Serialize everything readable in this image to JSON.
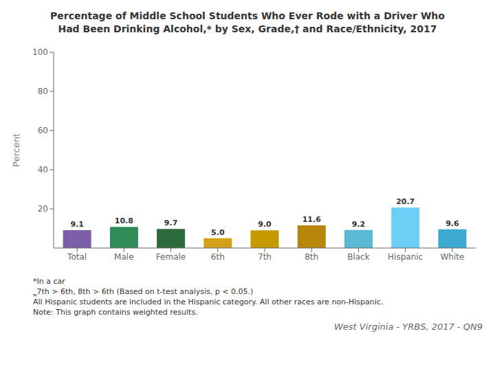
{
  "chart_data": {
    "type": "bar",
    "title": "Percentage of Middle School Students Who Ever Rode with a Driver Who\nHad Been Drinking Alcohol,* by Sex, Grade,† and Race/Ethnicity, 2017",
    "categories": [
      "Total",
      "Male",
      "Female",
      "6th",
      "7th",
      "8th",
      "Black",
      "Hispanic",
      "White"
    ],
    "values": [
      9.1,
      10.8,
      9.7,
      5.0,
      9.0,
      11.6,
      9.2,
      20.7,
      9.6
    ],
    "value_labels": [
      "9.1",
      "10.8",
      "9.7",
      "5.0",
      "9.0",
      "11.6",
      "9.2",
      "20.7",
      "9.6"
    ],
    "data_labels": true,
    "colors": [
      "#7b5ea7",
      "#2e8b57",
      "#2d6b3c",
      "#d4a017",
      "#c49a00",
      "#b8860b",
      "#5bb8d4",
      "#6ecff6",
      "#3aabcf"
    ],
    "ylabel": "Percent",
    "ylim": [
      0,
      100
    ],
    "yticks": [
      20,
      40,
      60,
      80,
      100
    ],
    "grid": false,
    "annotations": [
      "*In a car",
      "‗7th > 6th, 8th > 6th (Based on t-test analysis, p < 0.05.)",
      "All Hispanic students are included in the Hispanic category.  All other races are non-Hispanic.",
      "Note: This graph contains weighted results.",
      "West Virginia - YRBS, 2017 - QN9"
    ]
  }
}
